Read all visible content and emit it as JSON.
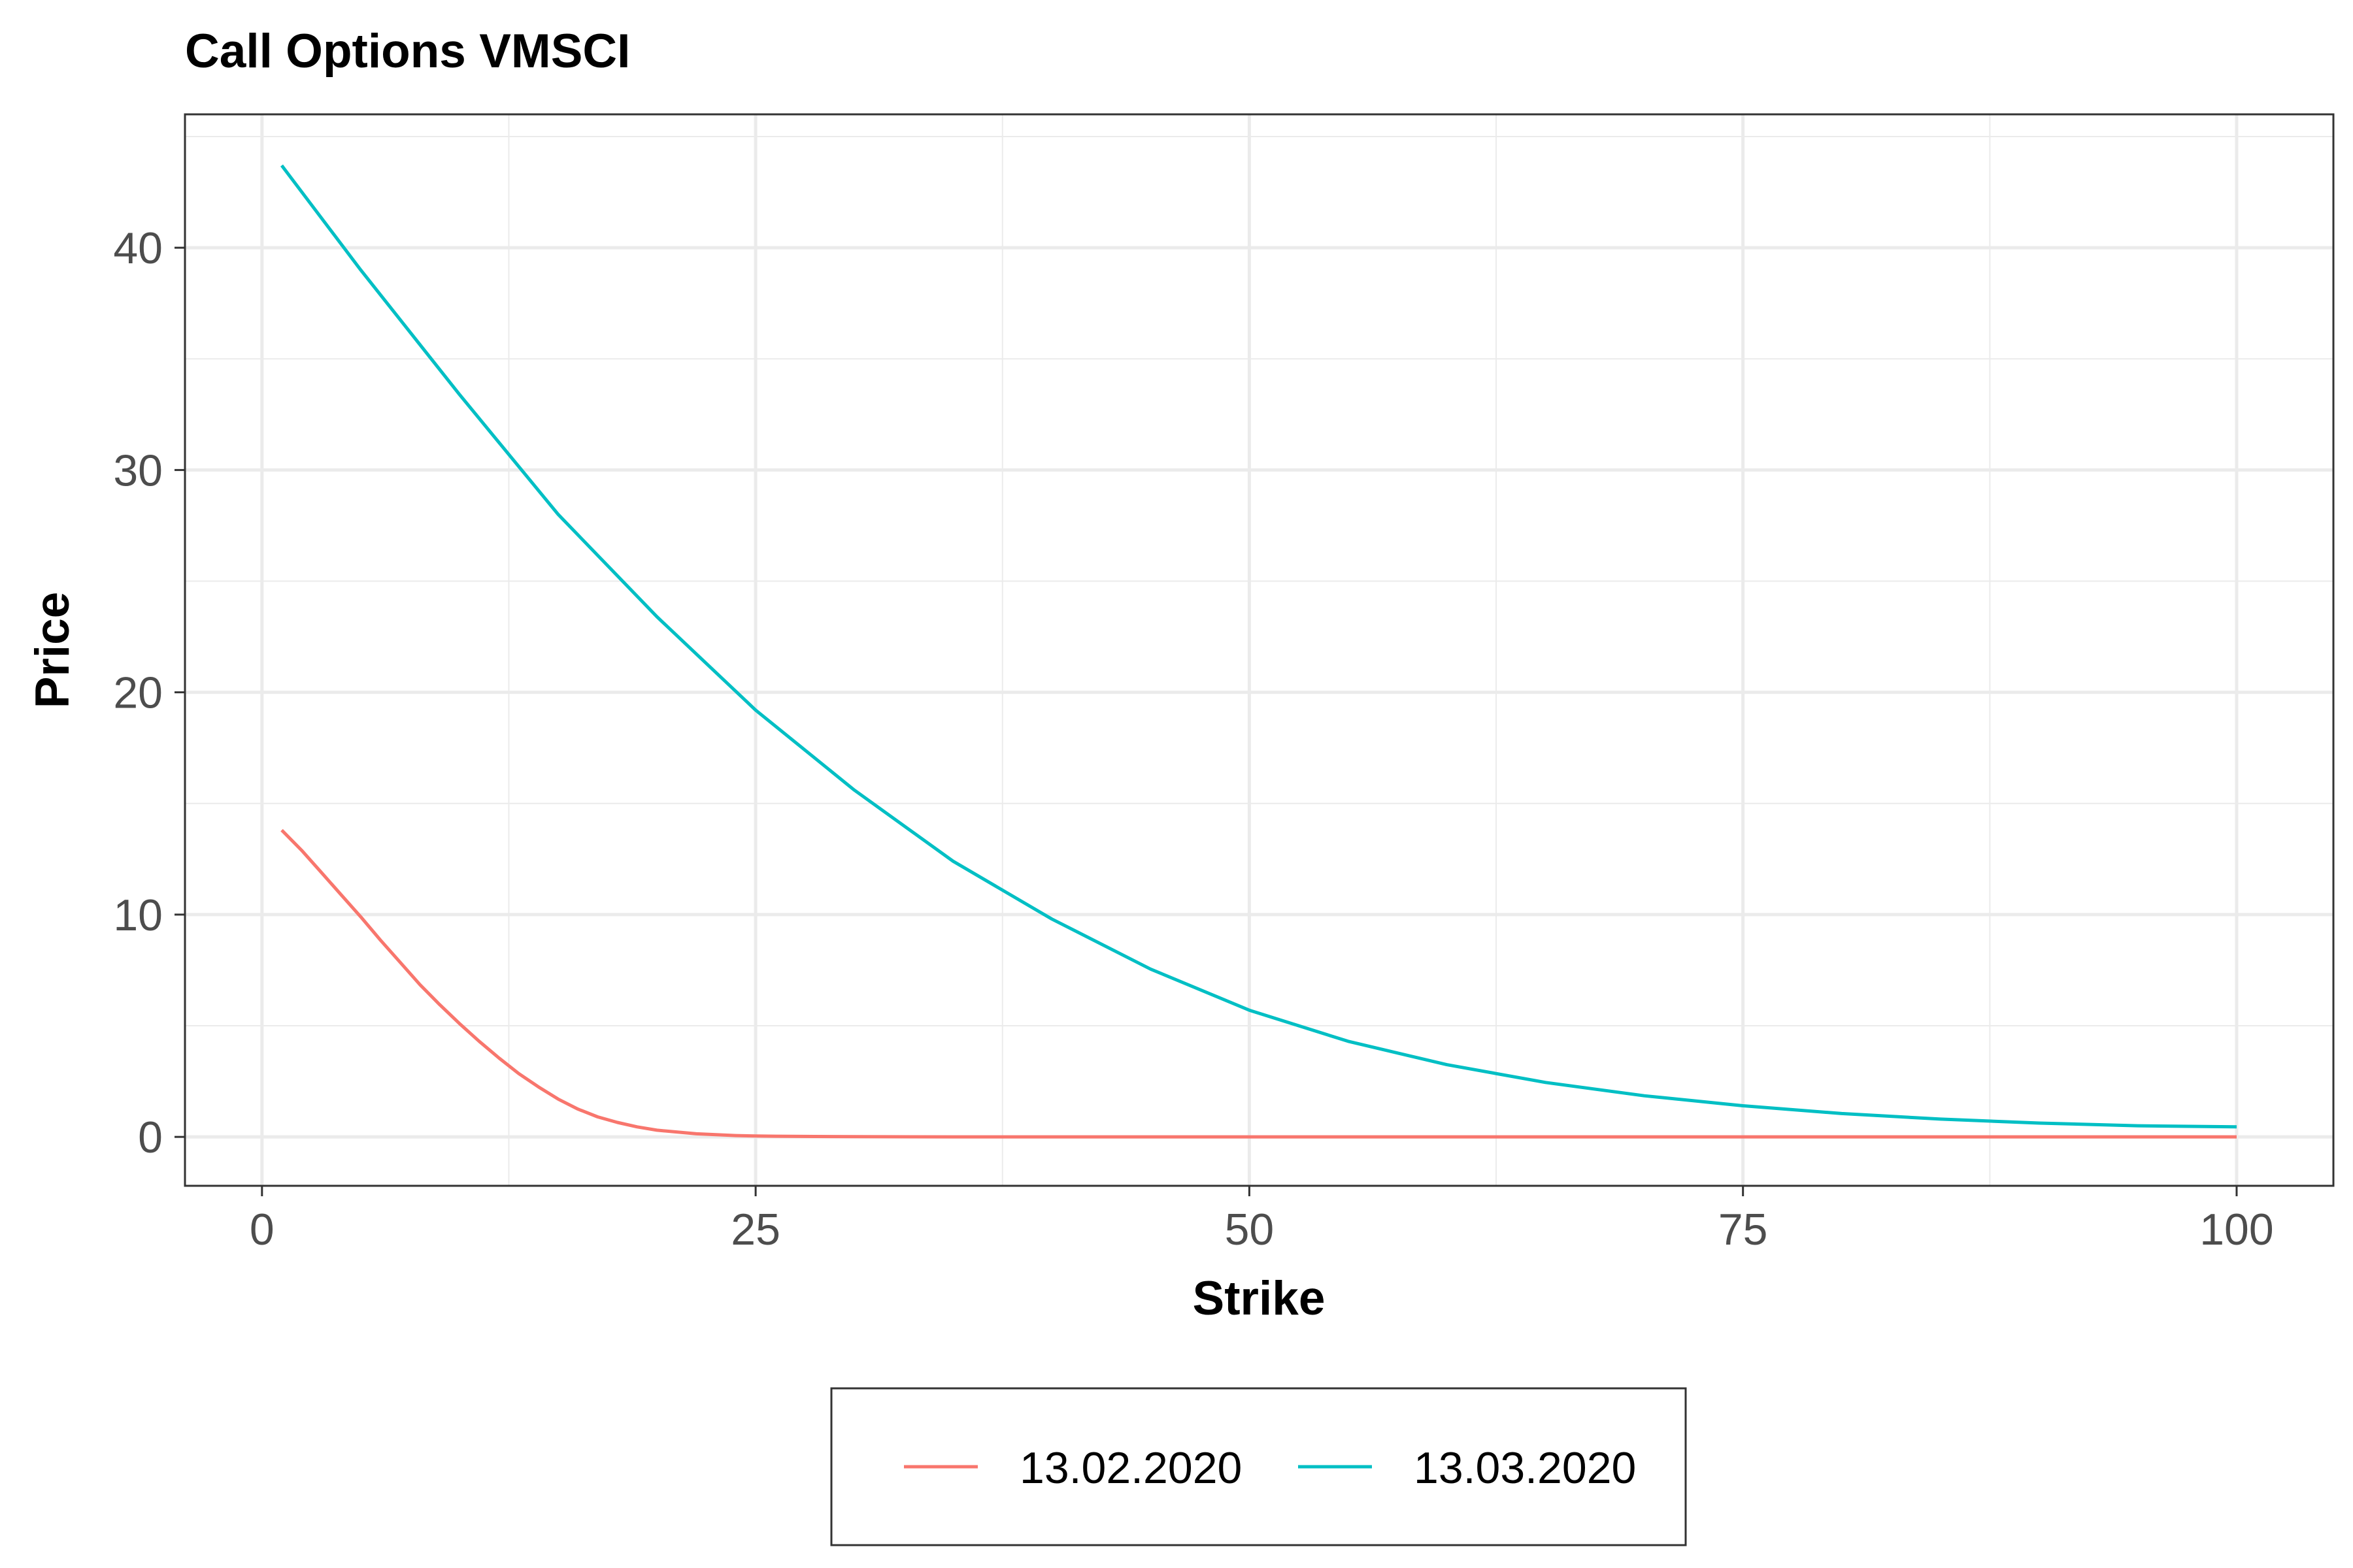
{
  "chart_data": {
    "type": "line",
    "title": "Call Options VMSCI",
    "xlabel": "Strike",
    "ylabel": "Price",
    "xlim": [
      -3.9,
      104.9
    ],
    "ylim": [
      -2.2,
      46.0
    ],
    "x_ticks": [
      0,
      25,
      50,
      75,
      100
    ],
    "x_tick_labels": [
      "0",
      "25",
      "50",
      "75",
      "100"
    ],
    "y_ticks": [
      0,
      10,
      20,
      30,
      40
    ],
    "y_tick_labels": [
      "0",
      "10",
      "20",
      "30",
      "40"
    ],
    "x_minor_ticks": [
      12.5,
      37.5,
      62.5,
      87.5
    ],
    "y_minor_ticks": [
      5,
      15,
      25,
      35,
      45
    ],
    "grid": true,
    "legend_position": "bottom",
    "series": [
      {
        "name": "13.02.2020",
        "color": "#f8766d",
        "x": [
          1,
          2,
          3,
          4,
          5,
          6,
          7,
          8,
          9,
          10,
          11,
          12,
          13,
          14,
          15,
          16,
          17,
          18,
          19,
          20,
          22,
          24,
          25,
          26,
          28,
          30,
          35,
          40,
          50,
          60,
          70,
          80,
          90,
          100
        ],
        "y": [
          13.8,
          12.9,
          11.9,
          10.9,
          9.9,
          8.85,
          7.85,
          6.85,
          5.95,
          5.1,
          4.3,
          3.55,
          2.85,
          2.25,
          1.7,
          1.25,
          0.9,
          0.65,
          0.45,
          0.3,
          0.14,
          0.06,
          0.04,
          0.03,
          0.02,
          0.01,
          0.0,
          0.0,
          0.0,
          0.0,
          0.0,
          0.0,
          0.0,
          0.0
        ]
      },
      {
        "name": "13.03.2020",
        "color": "#00bfc4",
        "x": [
          1,
          5,
          10,
          15,
          20,
          25,
          30,
          35,
          40,
          45,
          50,
          55,
          60,
          65,
          70,
          75,
          80,
          85,
          90,
          95,
          100
        ],
        "y": [
          43.7,
          39.0,
          33.4,
          28.0,
          23.4,
          19.2,
          15.6,
          12.4,
          9.8,
          7.55,
          5.7,
          4.3,
          3.25,
          2.45,
          1.85,
          1.4,
          1.05,
          0.8,
          0.62,
          0.5,
          0.45
        ]
      }
    ]
  }
}
